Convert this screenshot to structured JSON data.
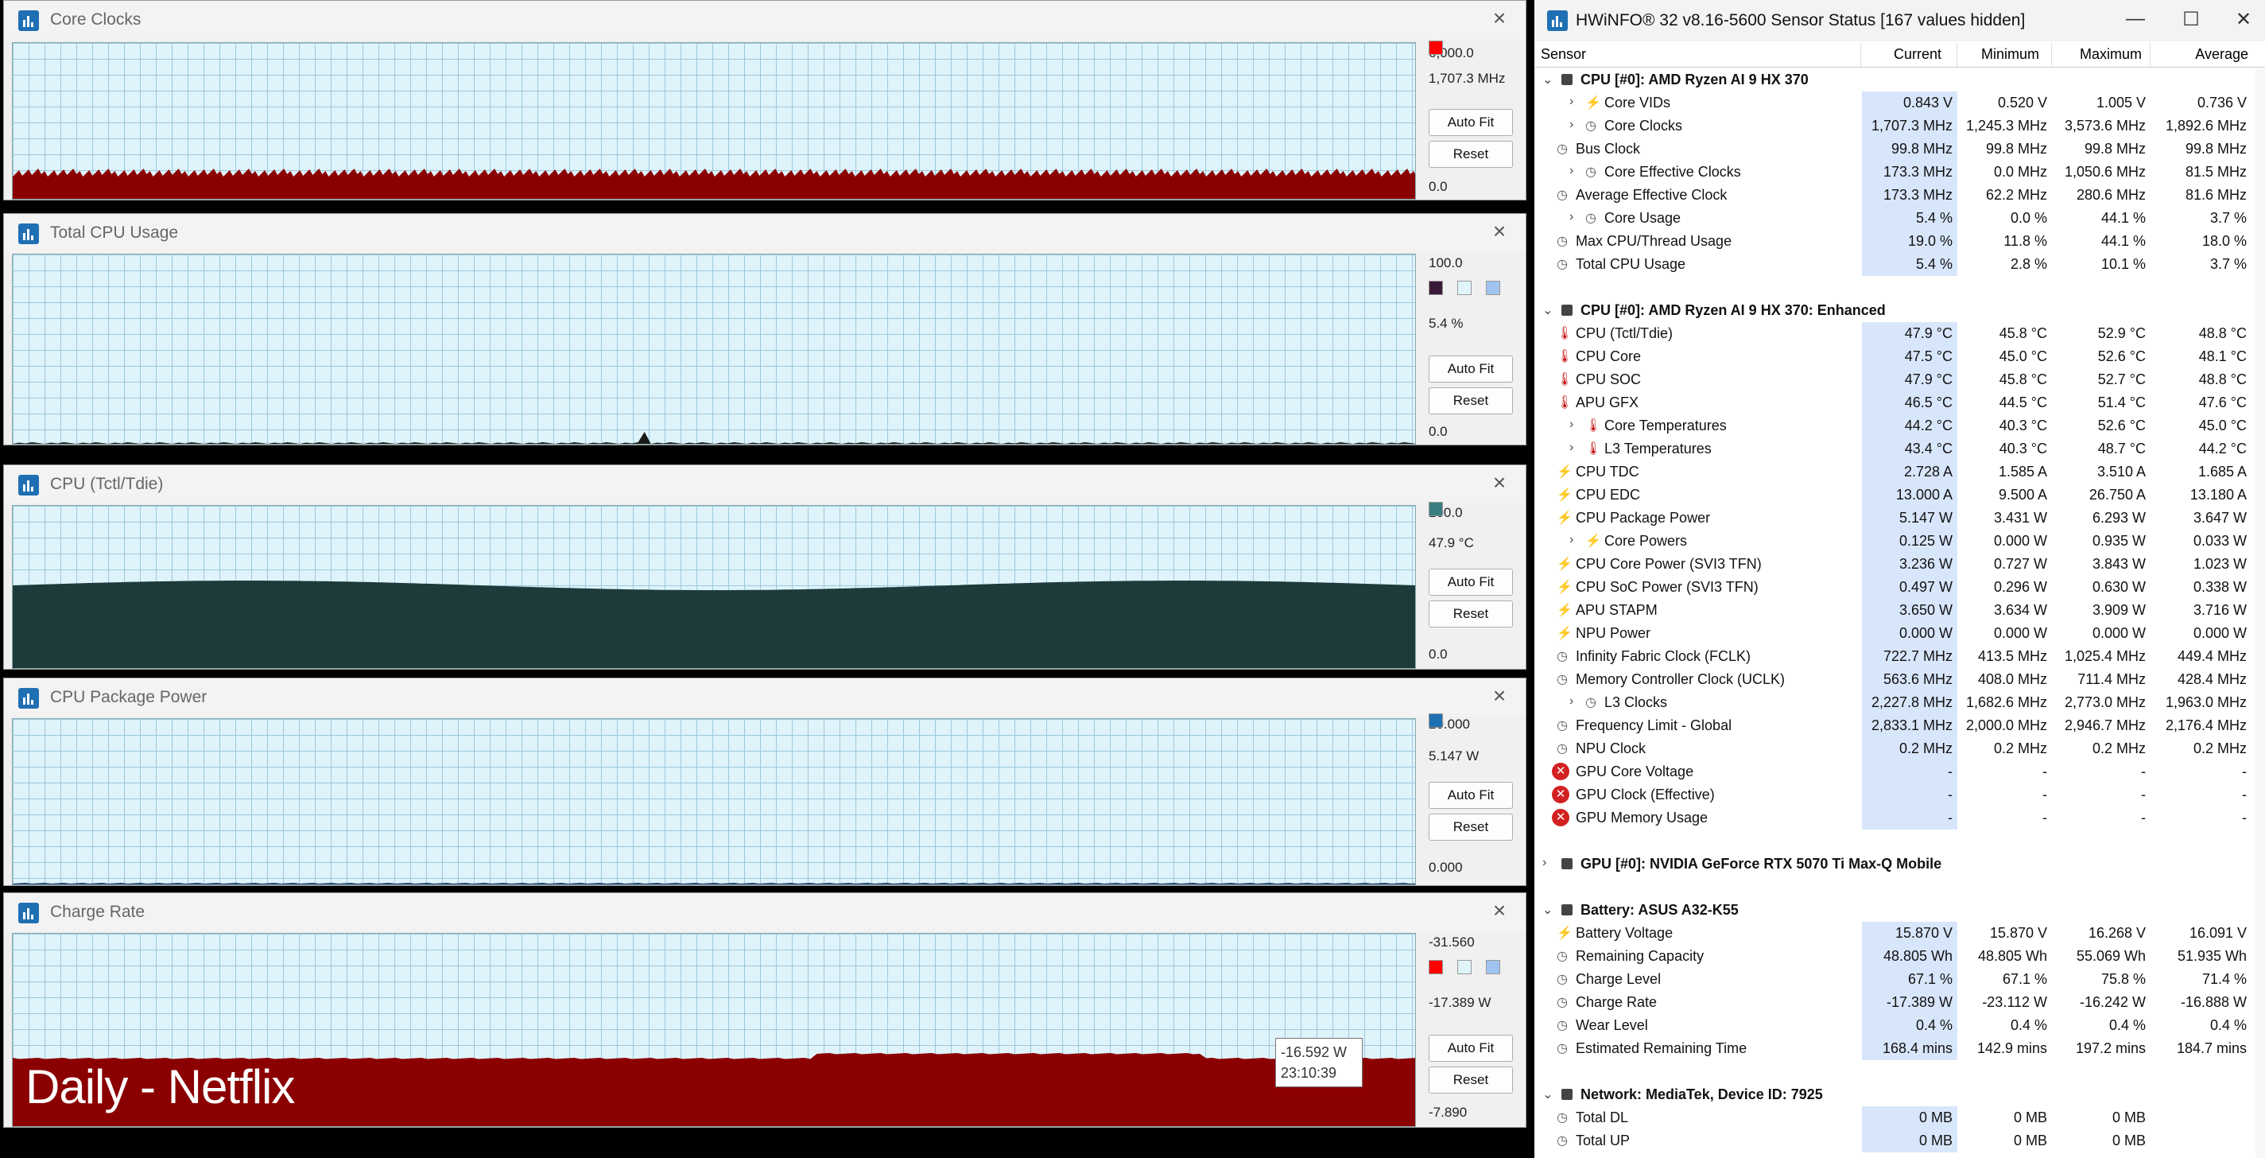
{
  "graphs": [
    {
      "title": "Core Clocks",
      "top_label": "6,000.0",
      "current": "1,707.3 MHz",
      "bottom": "0.0",
      "colors": [
        "#ff0000"
      ],
      "series_color": "#8b0000"
    },
    {
      "title": "Total CPU Usage",
      "top_label": "100.0",
      "current": "5.4 %",
      "bottom": "0.0",
      "colors": [
        "#3a1a3a",
        "#e0f5fa",
        "#9fc4f0"
      ],
      "series_color": "#1a1a1a"
    },
    {
      "title": "CPU (Tctl/Tdie)",
      "top_label": "100.0",
      "current": "47.9 °C",
      "bottom": "0.0",
      "colors": [
        "#3a7f7f"
      ],
      "series_color": "#1e3b3b"
    },
    {
      "title": "CPU Package Power",
      "top_label": "20.000",
      "current": "5.147 W",
      "bottom": "0.000",
      "colors": [
        "#1f6fb3"
      ],
      "series_color": "#1f3f6f"
    },
    {
      "title": "Charge Rate",
      "top_label": "-31.560",
      "current": "-17.389 W",
      "bottom": "-7.890",
      "colors": [
        "#ff0000",
        "#e0f5fa",
        "#9fc4f0"
      ],
      "series_color": "#8b0000"
    }
  ],
  "buttons": {
    "auto_fit": "Auto Fit",
    "reset": "Reset"
  },
  "overlay": {
    "caption": "Daily - Netflix",
    "tooltip_value": "-16.592 W",
    "tooltip_time": "23:10:39"
  },
  "sensor_window": {
    "title": "HWiNFO® 32 v8.16-5600 Sensor Status [167 values hidden]",
    "controls": {
      "minimize": "—",
      "maximize": "☐",
      "close": "✕"
    },
    "columns": {
      "sensor": "Sensor",
      "current": "Current",
      "minimum": "Minimum",
      "maximum": "Maximum",
      "average": "Average"
    },
    "rows": [
      {
        "type": "group",
        "name": "CPU [#0]: AMD Ryzen AI 9 HX 370",
        "expanded": true
      },
      {
        "name": "Core VIDs",
        "icon": "bolt",
        "expandable": true,
        "cur": "0.843 V",
        "min": "0.520 V",
        "max": "1.005 V",
        "avg": "0.736 V"
      },
      {
        "name": "Core Clocks",
        "icon": "clock",
        "expandable": true,
        "cur": "1,707.3 MHz",
        "min": "1,245.3 MHz",
        "max": "3,573.6 MHz",
        "avg": "1,892.6 MHz"
      },
      {
        "name": "Bus Clock",
        "icon": "clock",
        "cur": "99.8 MHz",
        "min": "99.8 MHz",
        "max": "99.8 MHz",
        "avg": "99.8 MHz"
      },
      {
        "name": "Core Effective Clocks",
        "icon": "clock",
        "expandable": true,
        "cur": "173.3 MHz",
        "min": "0.0 MHz",
        "max": "1,050.6 MHz",
        "avg": "81.5 MHz"
      },
      {
        "name": "Average Effective Clock",
        "icon": "clock",
        "cur": "173.3 MHz",
        "min": "62.2 MHz",
        "max": "280.6 MHz",
        "avg": "81.6 MHz"
      },
      {
        "name": "Core Usage",
        "icon": "clock",
        "expandable": true,
        "cur": "5.4 %",
        "min": "0.0 %",
        "max": "44.1 %",
        "avg": "3.7 %"
      },
      {
        "name": "Max CPU/Thread Usage",
        "icon": "clock",
        "cur": "19.0 %",
        "min": "11.8 %",
        "max": "44.1 %",
        "avg": "18.0 %"
      },
      {
        "name": "Total CPU Usage",
        "icon": "clock",
        "cur": "5.4 %",
        "min": "2.8 %",
        "max": "10.1 %",
        "avg": "3.7 %"
      },
      {
        "type": "spacer"
      },
      {
        "type": "group",
        "name": "CPU [#0]: AMD Ryzen AI 9 HX 370: Enhanced",
        "expanded": true
      },
      {
        "name": "CPU (Tctl/Tdie)",
        "icon": "therm",
        "cur": "47.9 °C",
        "min": "45.8 °C",
        "max": "52.9 °C",
        "avg": "48.8 °C"
      },
      {
        "name": "CPU Core",
        "icon": "therm",
        "cur": "47.5 °C",
        "min": "45.0 °C",
        "max": "52.6 °C",
        "avg": "48.1 °C"
      },
      {
        "name": "CPU SOC",
        "icon": "therm",
        "cur": "47.9 °C",
        "min": "45.8 °C",
        "max": "52.7 °C",
        "avg": "48.8 °C"
      },
      {
        "name": "APU GFX",
        "icon": "therm",
        "cur": "46.5 °C",
        "min": "44.5 °C",
        "max": "51.4 °C",
        "avg": "47.6 °C"
      },
      {
        "name": "Core Temperatures",
        "icon": "therm",
        "expandable": true,
        "cur": "44.2 °C",
        "min": "40.3 °C",
        "max": "52.6 °C",
        "avg": "45.0 °C"
      },
      {
        "name": "L3 Temperatures",
        "icon": "therm",
        "expandable": true,
        "cur": "43.4 °C",
        "min": "40.3 °C",
        "max": "48.7 °C",
        "avg": "44.2 °C"
      },
      {
        "name": "CPU TDC",
        "icon": "bolt",
        "cur": "2.728 A",
        "min": "1.585 A",
        "max": "3.510 A",
        "avg": "1.685 A"
      },
      {
        "name": "CPU EDC",
        "icon": "bolt",
        "cur": "13.000 A",
        "min": "9.500 A",
        "max": "26.750 A",
        "avg": "13.180 A"
      },
      {
        "name": "CPU Package Power",
        "icon": "bolt",
        "cur": "5.147 W",
        "min": "3.431 W",
        "max": "6.293 W",
        "avg": "3.647 W"
      },
      {
        "name": "Core Powers",
        "icon": "bolt",
        "expandable": true,
        "cur": "0.125 W",
        "min": "0.000 W",
        "max": "0.935 W",
        "avg": "0.033 W"
      },
      {
        "name": "CPU Core Power (SVI3 TFN)",
        "icon": "bolt",
        "cur": "3.236 W",
        "min": "0.727 W",
        "max": "3.843 W",
        "avg": "1.023 W"
      },
      {
        "name": "CPU SoC Power (SVI3 TFN)",
        "icon": "bolt",
        "cur": "0.497 W",
        "min": "0.296 W",
        "max": "0.630 W",
        "avg": "0.338 W"
      },
      {
        "name": "APU STAPM",
        "icon": "bolt",
        "cur": "3.650 W",
        "min": "3.634 W",
        "max": "3.909 W",
        "avg": "3.716 W"
      },
      {
        "name": "NPU Power",
        "icon": "bolt",
        "cur": "0.000 W",
        "min": "0.000 W",
        "max": "0.000 W",
        "avg": "0.000 W"
      },
      {
        "name": "Infinity Fabric Clock (FCLK)",
        "icon": "clock",
        "cur": "722.7 MHz",
        "min": "413.5 MHz",
        "max": "1,025.4 MHz",
        "avg": "449.4 MHz"
      },
      {
        "name": "Memory Controller Clock (UCLK)",
        "icon": "clock",
        "cur": "563.6 MHz",
        "min": "408.0 MHz",
        "max": "711.4 MHz",
        "avg": "428.4 MHz"
      },
      {
        "name": "L3 Clocks",
        "icon": "clock",
        "expandable": true,
        "cur": "2,227.8 MHz",
        "min": "1,682.6 MHz",
        "max": "2,773.0 MHz",
        "avg": "1,963.0 MHz"
      },
      {
        "name": "Frequency Limit - Global",
        "icon": "clock",
        "cur": "2,833.1 MHz",
        "min": "2,000.0 MHz",
        "max": "2,946.7 MHz",
        "avg": "2,176.4 MHz"
      },
      {
        "name": "NPU Clock",
        "icon": "clock",
        "cur": "0.2 MHz",
        "min": "0.2 MHz",
        "max": "0.2 MHz",
        "avg": "0.2 MHz"
      },
      {
        "name": "GPU Core Voltage",
        "icon": "err",
        "cur": "-",
        "min": "-",
        "max": "-",
        "avg": "-"
      },
      {
        "name": "GPU Clock (Effective)",
        "icon": "err",
        "cur": "-",
        "min": "-",
        "max": "-",
        "avg": "-"
      },
      {
        "name": "GPU Memory Usage",
        "icon": "err",
        "cur": "-",
        "min": "-",
        "max": "-",
        "avg": "-"
      },
      {
        "type": "spacer"
      },
      {
        "type": "group",
        "name": "GPU [#0]: NVIDIA  GeForce RTX 5070 Ti Max-Q Mobile",
        "expanded": false
      },
      {
        "type": "spacer"
      },
      {
        "type": "group",
        "name": "Battery: ASUS  A32-K55",
        "expanded": true
      },
      {
        "name": "Battery Voltage",
        "icon": "bolt",
        "cur": "15.870 V",
        "min": "15.870 V",
        "max": "16.268 V",
        "avg": "16.091 V"
      },
      {
        "name": "Remaining Capacity",
        "icon": "clock",
        "cur": "48.805 Wh",
        "min": "48.805 Wh",
        "max": "55.069 Wh",
        "avg": "51.935 Wh"
      },
      {
        "name": "Charge Level",
        "icon": "clock",
        "cur": "67.1 %",
        "min": "67.1 %",
        "max": "75.8 %",
        "avg": "71.4 %"
      },
      {
        "name": "Charge Rate",
        "icon": "clock",
        "cur": "-17.389 W",
        "min": "-23.112 W",
        "max": "-16.242 W",
        "avg": "-16.888 W"
      },
      {
        "name": "Wear Level",
        "icon": "clock",
        "cur": "0.4 %",
        "min": "0.4 %",
        "max": "0.4 %",
        "avg": "0.4 %"
      },
      {
        "name": "Estimated Remaining Time",
        "icon": "clock",
        "cur": "168.4 mins",
        "min": "142.9 mins",
        "max": "197.2 mins",
        "avg": "184.7 mins"
      },
      {
        "type": "spacer"
      },
      {
        "type": "group",
        "name": "Network: MediaTek, Device ID: 7925",
        "expanded": true
      },
      {
        "name": "Total DL",
        "icon": "clock",
        "cur": "0 MB",
        "min": "0 MB",
        "max": "0 MB",
        "avg": ""
      },
      {
        "name": "Total UP",
        "icon": "clock",
        "cur": "0 MB",
        "min": "0 MB",
        "max": "0 MB",
        "avg": ""
      }
    ]
  }
}
